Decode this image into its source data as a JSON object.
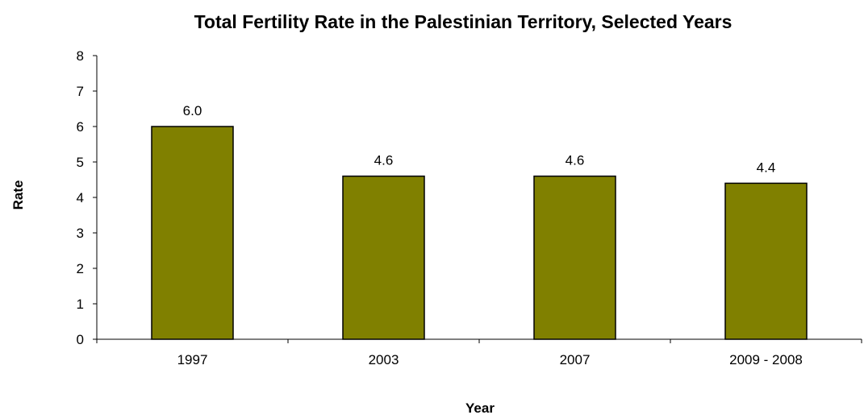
{
  "chart_data": {
    "type": "bar",
    "title": "Total Fertility Rate in the Palestinian Territory, Selected Years",
    "xlabel": "Year",
    "ylabel": "Rate",
    "categories": [
      "1997",
      "2003",
      "2007",
      "2009 - 2008"
    ],
    "values": [
      6.0,
      4.6,
      4.6,
      4.4
    ],
    "data_labels": [
      "6.0",
      "4.6",
      "4.6",
      "4.4"
    ],
    "yticks": [
      "0",
      "1",
      "2",
      "3",
      "4",
      "5",
      "6",
      "7",
      "8"
    ],
    "ylim": [
      0,
      8
    ],
    "grid": false,
    "legend": "none",
    "bar_color": "#808000",
    "bar_outline": "#000000"
  }
}
